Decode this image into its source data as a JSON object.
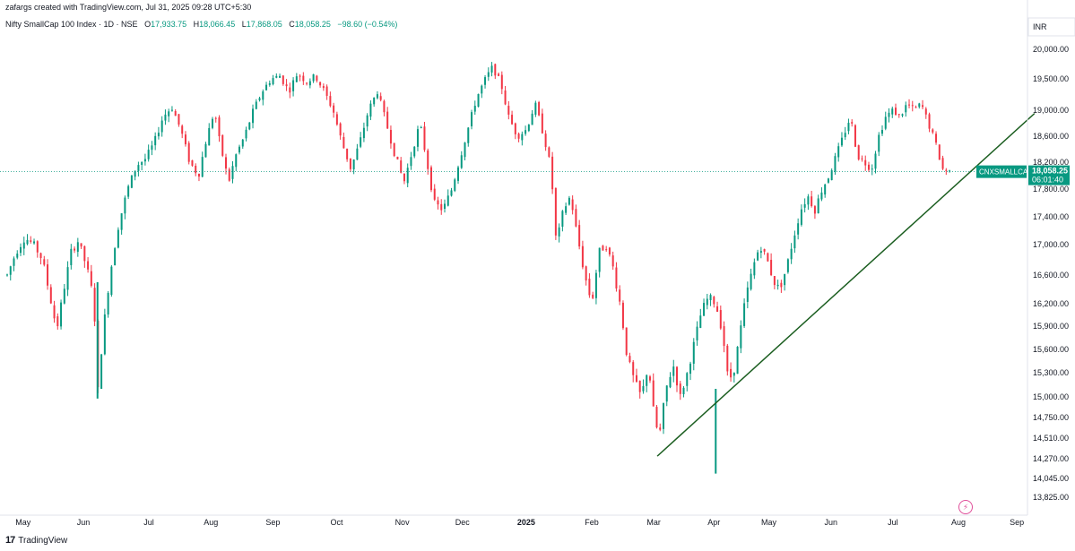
{
  "header": {
    "credit": "zafargs created with TradingView.com, Jul 31, 2025 09:28 UTC+5:30",
    "symbol": "Nifty SmallCap 100 Index · 1D · NSE",
    "o_label": "O",
    "o_value": "17,933.75",
    "h_label": "H",
    "h_value": "18,066.45",
    "l_label": "L",
    "l_value": "17,868.05",
    "c_label": "C",
    "c_value": "18,058.25",
    "change": "−98.60 (−0.54%)"
  },
  "footer": {
    "brand": "TradingView",
    "logo": "17"
  },
  "colors": {
    "up": "#089981",
    "down": "#f23645",
    "trendline": "#1b5e20",
    "price_line": "#089981",
    "grid": "#f0f3fa"
  },
  "icons": {
    "flash": "flash-icon"
  },
  "chart_data": {
    "type": "candlestick",
    "title": "Nifty SmallCap 100 Index · 1D · NSE",
    "currency": "INR",
    "y_ticks": [
      20000,
      19500,
      19000,
      18600,
      18200,
      17800,
      17400,
      17000,
      16600,
      16200,
      15900,
      15600,
      15300,
      15000,
      14750,
      14510,
      14270,
      14045,
      13825
    ],
    "y_tick_labels": [
      "20,000.00",
      "19,500.00",
      "19,000.00",
      "18,600.00",
      "18,200.00",
      "17,800.00",
      "17,400.00",
      "17,000.00",
      "16,600.00",
      "16,200.00",
      "15,900.00",
      "15,600.00",
      "15,300.00",
      "15,000.00",
      "14,750.00",
      "14,510.00",
      "14,270.00",
      "14,045.00",
      "13,825.00"
    ],
    "x_labels": [
      {
        "label": "May",
        "t": 0.9
      },
      {
        "label": "Jun",
        "t": 4.3
      },
      {
        "label": "Jul",
        "t": 8.0
      },
      {
        "label": "Aug",
        "t": 11.5
      },
      {
        "label": "Sep",
        "t": 15.0
      },
      {
        "label": "Oct",
        "t": 18.6
      },
      {
        "label": "Nov",
        "t": 22.3
      },
      {
        "label": "Dec",
        "t": 25.7
      },
      {
        "label": "2025",
        "t": 29.3,
        "bold": true
      },
      {
        "label": "Feb",
        "t": 33.0
      },
      {
        "label": "Mar",
        "t": 36.5
      },
      {
        "label": "Apr",
        "t": 39.9
      },
      {
        "label": "May",
        "t": 43.0
      },
      {
        "label": "Jun",
        "t": 46.5
      },
      {
        "label": "Jul",
        "t": 50.0
      },
      {
        "label": "Aug",
        "t": 53.7
      },
      {
        "label": "Sep",
        "t": 57.0
      }
    ],
    "price_path": [
      [
        0,
        16600
      ],
      [
        0.5,
        16900
      ],
      [
        1.0,
        17100
      ],
      [
        1.5,
        17000
      ],
      [
        2.0,
        16800
      ],
      [
        2.5,
        16200
      ],
      [
        2.8,
        15850
      ],
      [
        3.2,
        16400
      ],
      [
        3.6,
        16900
      ],
      [
        4.0,
        17050
      ],
      [
        4.5,
        16700
      ],
      [
        4.9,
        16250
      ],
      [
        5.1,
        15000
      ],
      [
        5.4,
        15800
      ],
      [
        5.8,
        16600
      ],
      [
        6.3,
        17300
      ],
      [
        6.8,
        17800
      ],
      [
        7.3,
        18150
      ],
      [
        7.8,
        18250
      ],
      [
        8.3,
        18500
      ],
      [
        8.8,
        18900
      ],
      [
        9.3,
        19050
      ],
      [
        9.8,
        18700
      ],
      [
        10.3,
        18200
      ],
      [
        10.8,
        18000
      ],
      [
        11.2,
        18500
      ],
      [
        11.7,
        19000
      ],
      [
        12.0,
        18500
      ],
      [
        12.5,
        17900
      ],
      [
        12.9,
        18300
      ],
      [
        13.4,
        18600
      ],
      [
        13.9,
        19000
      ],
      [
        14.4,
        19300
      ],
      [
        14.9,
        19500
      ],
      [
        15.4,
        19550
      ],
      [
        15.9,
        19300
      ],
      [
        16.4,
        19600
      ],
      [
        16.9,
        19450
      ],
      [
        17.4,
        19550
      ],
      [
        17.9,
        19300
      ],
      [
        18.4,
        19000
      ],
      [
        18.9,
        18500
      ],
      [
        19.4,
        18100
      ],
      [
        19.9,
        18500
      ],
      [
        20.4,
        19000
      ],
      [
        20.9,
        19300
      ],
      [
        21.4,
        18800
      ],
      [
        21.9,
        18300
      ],
      [
        22.4,
        17900
      ],
      [
        22.9,
        18400
      ],
      [
        23.3,
        18800
      ],
      [
        23.7,
        18200
      ],
      [
        24.1,
        17600
      ],
      [
        24.6,
        17500
      ],
      [
        25.1,
        17800
      ],
      [
        25.5,
        18200
      ],
      [
        26.0,
        18700
      ],
      [
        26.5,
        19200
      ],
      [
        27.0,
        19500
      ],
      [
        27.4,
        19700
      ],
      [
        27.9,
        19400
      ],
      [
        28.3,
        18900
      ],
      [
        28.8,
        18600
      ],
      [
        29.3,
        18700
      ],
      [
        29.8,
        19100
      ],
      [
        30.3,
        18600
      ],
      [
        30.7,
        18100
      ],
      [
        31.0,
        17000
      ],
      [
        31.4,
        17500
      ],
      [
        31.8,
        17700
      ],
      [
        32.2,
        17100
      ],
      [
        32.6,
        16600
      ],
      [
        33.0,
        16200
      ],
      [
        33.4,
        16900
      ],
      [
        33.8,
        17000
      ],
      [
        34.2,
        16700
      ],
      [
        34.6,
        16200
      ],
      [
        35.0,
        15500
      ],
      [
        35.4,
        15200
      ],
      [
        35.8,
        15000
      ],
      [
        36.2,
        15400
      ],
      [
        36.5,
        14800
      ],
      [
        36.8,
        14500
      ],
      [
        37.2,
        15100
      ],
      [
        37.6,
        15400
      ],
      [
        38.0,
        15000
      ],
      [
        38.4,
        15300
      ],
      [
        38.8,
        15700
      ],
      [
        39.2,
        16100
      ],
      [
        39.6,
        16300
      ],
      [
        40.0,
        16200
      ],
      [
        40.4,
        15800
      ],
      [
        40.7,
        15200
      ],
      [
        41.0,
        15300
      ],
      [
        41.3,
        15700
      ],
      [
        41.7,
        16300
      ],
      [
        42.1,
        16700
      ],
      [
        42.5,
        17000
      ],
      [
        42.9,
        16800
      ],
      [
        43.3,
        16500
      ],
      [
        43.6,
        16400
      ],
      [
        44.0,
        16700
      ],
      [
        44.4,
        17100
      ],
      [
        44.8,
        17500
      ],
      [
        45.2,
        17700
      ],
      [
        45.6,
        17500
      ],
      [
        46.0,
        17800
      ],
      [
        46.4,
        18000
      ],
      [
        46.8,
        18300
      ],
      [
        47.2,
        18600
      ],
      [
        47.6,
        18900
      ],
      [
        48.0,
        18300
      ],
      [
        48.4,
        18200
      ],
      [
        48.8,
        18100
      ],
      [
        49.2,
        18600
      ],
      [
        49.6,
        18900
      ],
      [
        50.0,
        19000
      ],
      [
        50.4,
        18900
      ],
      [
        50.8,
        19100
      ],
      [
        51.2,
        19000
      ],
      [
        51.6,
        19100
      ],
      [
        52.0,
        18800
      ],
      [
        52.4,
        18500
      ],
      [
        52.8,
        18100
      ],
      [
        53.2,
        18058
      ]
    ],
    "trendline": [
      {
        "t": 36.7,
        "y": 14300
      },
      {
        "t": 58.0,
        "y": 18950
      }
    ],
    "spikes": [
      {
        "t": 40.0,
        "low": 14100,
        "high": 15100
      },
      {
        "t": 5.1,
        "low": 14980,
        "high": 16500
      }
    ],
    "last_price": {
      "value": 18058.25,
      "label": "18,058.25",
      "symbol": "CNXSMALLCAP",
      "countdown": "06:01:40"
    }
  }
}
